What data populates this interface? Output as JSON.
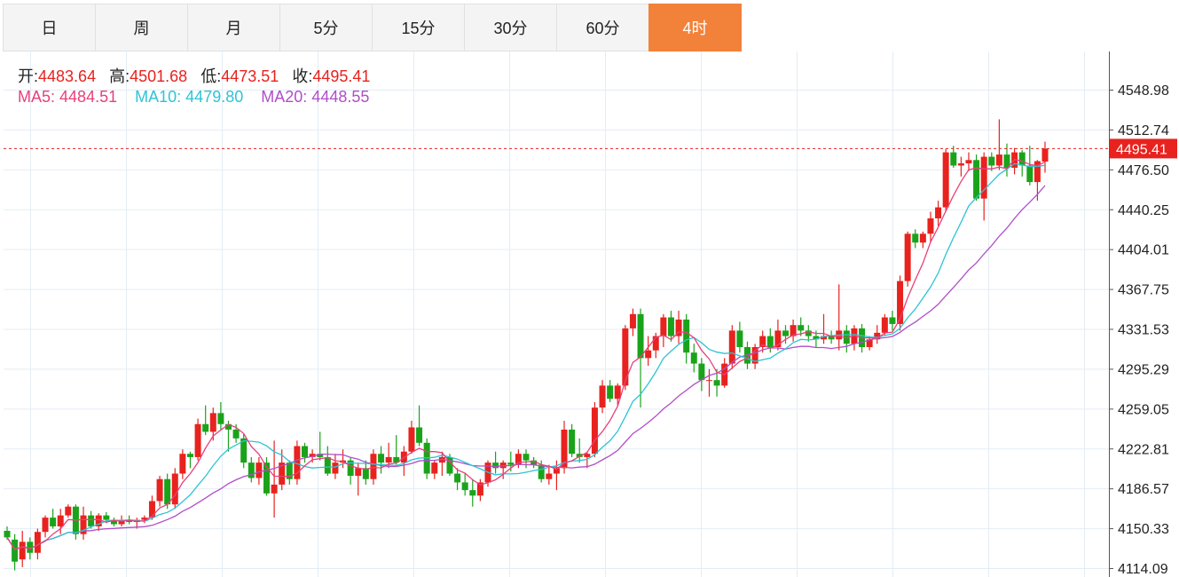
{
  "tabs": [
    "日",
    "周",
    "月",
    "5分",
    "15分",
    "30分",
    "60分",
    "4时"
  ],
  "active_tab": 7,
  "ohlc_info": {
    "open_label": "开:",
    "open": "4483.64",
    "high_label": "高:",
    "high": "4501.68",
    "low_label": "低:",
    "low": "4473.51",
    "close_label": "收:",
    "close": "4495.41"
  },
  "ma_info": {
    "ma5_label": "MA5:",
    "ma5": "4484.51",
    "ma10_label": "MA10:",
    "ma10": "4479.80",
    "ma20_label": "MA20:",
    "ma20": "4448.55"
  },
  "colors": {
    "up": "#e8221e",
    "down": "#1aa31a",
    "ma5": "#e8407a",
    "ma10": "#2ec3d6",
    "ma20": "#b04ec8",
    "accent": "#f2823a",
    "grid": "#e4edf5"
  },
  "chart_data": {
    "type": "candlestick",
    "y_ticks": [
      "4548.98",
      "4512.74",
      "4476.50",
      "4440.25",
      "4404.01",
      "4367.75",
      "4331.53",
      "4295.29",
      "4259.05",
      "4222.81",
      "4186.57",
      "4150.33",
      "4114.09"
    ],
    "ylim": [
      4114.09,
      4548.98
    ],
    "last_price_label": "4495.41",
    "last_price": 4495.41,
    "candles": [
      [
        4148,
        4152,
        4140,
        4142
      ],
      [
        4140,
        4145,
        4112,
        4120
      ],
      [
        4122,
        4148,
        4115,
        4138
      ],
      [
        4138,
        4142,
        4122,
        4128
      ],
      [
        4128,
        4150,
        4122,
        4147
      ],
      [
        4147,
        4162,
        4142,
        4160
      ],
      [
        4160,
        4168,
        4150,
        4152
      ],
      [
        4152,
        4168,
        4145,
        4162
      ],
      [
        4162,
        4172,
        4160,
        4170
      ],
      [
        4170,
        4172,
        4140,
        4145
      ],
      [
        4145,
        4170,
        4140,
        4162
      ],
      [
        4162,
        4166,
        4150,
        4152
      ],
      [
        4152,
        4164,
        4148,
        4162
      ],
      [
        4162,
        4165,
        4155,
        4158
      ],
      [
        4158,
        4160,
        4152,
        4154
      ],
      [
        4154,
        4162,
        4152,
        4158
      ],
      [
        4158,
        4162,
        4154,
        4156
      ],
      [
        4156,
        4160,
        4150,
        4158
      ],
      [
        4158,
        4162,
        4155,
        4160
      ],
      [
        4160,
        4180,
        4158,
        4175
      ],
      [
        4175,
        4198,
        4170,
        4195
      ],
      [
        4195,
        4200,
        4168,
        4172
      ],
      [
        4172,
        4205,
        4168,
        4200
      ],
      [
        4200,
        4222,
        4195,
        4218
      ],
      [
        4218,
        4220,
        4205,
        4215
      ],
      [
        4215,
        4250,
        4212,
        4245
      ],
      [
        4245,
        4262,
        4235,
        4238
      ],
      [
        4238,
        4260,
        4230,
        4255
      ],
      [
        4255,
        4265,
        4240,
        4245
      ],
      [
        4245,
        4248,
        4220,
        4240
      ],
      [
        4240,
        4245,
        4228,
        4232
      ],
      [
        4232,
        4236,
        4205,
        4210
      ],
      [
        4210,
        4215,
        4192,
        4196
      ],
      [
        4196,
        4215,
        4190,
        4210
      ],
      [
        4210,
        4215,
        4180,
        4182
      ],
      [
        4182,
        4230,
        4160,
        4190
      ],
      [
        4190,
        4222,
        4185,
        4210
      ],
      [
        4210,
        4212,
        4190,
        4195
      ],
      [
        4195,
        4230,
        4190,
        4225
      ],
      [
        4225,
        4228,
        4210,
        4215
      ],
      [
        4215,
        4222,
        4210,
        4218
      ],
      [
        4218,
        4238,
        4212,
        4215
      ],
      [
        4215,
        4225,
        4198,
        4200
      ],
      [
        4200,
        4218,
        4195,
        4210
      ],
      [
        4210,
        4222,
        4205,
        4212
      ],
      [
        4212,
        4215,
        4190,
        4198
      ],
      [
        4198,
        4210,
        4180,
        4205
      ],
      [
        4205,
        4212,
        4190,
        4195
      ],
      [
        4195,
        4222,
        4190,
        4218
      ],
      [
        4218,
        4225,
        4200,
        4210
      ],
      [
        4210,
        4228,
        4205,
        4215
      ],
      [
        4215,
        4235,
        4208,
        4210
      ],
      [
        4210,
        4225,
        4198,
        4220
      ],
      [
        4220,
        4248,
        4218,
        4242
      ],
      [
        4242,
        4262,
        4225,
        4228
      ],
      [
        4228,
        4232,
        4195,
        4200
      ],
      [
        4200,
        4212,
        4195,
        4210
      ],
      [
        4210,
        4220,
        4198,
        4215
      ],
      [
        4215,
        4218,
        4198,
        4200
      ],
      [
        4200,
        4205,
        4185,
        4192
      ],
      [
        4192,
        4200,
        4180,
        4185
      ],
      [
        4185,
        4195,
        4170,
        4180
      ],
      [
        4180,
        4195,
        4175,
        4192
      ],
      [
        4192,
        4212,
        4188,
        4210
      ],
      [
        4210,
        4220,
        4200,
        4205
      ],
      [
        4205,
        4212,
        4195,
        4210
      ],
      [
        4210,
        4220,
        4202,
        4208
      ],
      [
        4208,
        4222,
        4205,
        4218
      ],
      [
        4218,
        4222,
        4205,
        4212
      ],
      [
        4212,
        4215,
        4205,
        4208
      ],
      [
        4208,
        4212,
        4192,
        4195
      ],
      [
        4195,
        4208,
        4190,
        4200
      ],
      [
        4200,
        4212,
        4185,
        4205
      ],
      [
        4205,
        4248,
        4200,
        4240
      ],
      [
        4240,
        4245,
        4215,
        4218
      ],
      [
        4218,
        4232,
        4210,
        4215
      ],
      [
        4215,
        4220,
        4205,
        4218
      ],
      [
        4218,
        4265,
        4215,
        4260
      ],
      [
        4260,
        4285,
        4255,
        4280
      ],
      [
        4280,
        4285,
        4265,
        4268
      ],
      [
        4268,
        4282,
        4262,
        4280
      ],
      [
        4280,
        4335,
        4276,
        4332
      ],
      [
        4332,
        4350,
        4325,
        4345
      ],
      [
        4345,
        4350,
        4260,
        4305
      ],
      [
        4305,
        4325,
        4298,
        4312
      ],
      [
        4312,
        4328,
        4305,
        4325
      ],
      [
        4325,
        4345,
        4315,
        4342
      ],
      [
        4342,
        4348,
        4320,
        4325
      ],
      [
        4325,
        4348,
        4318,
        4340
      ],
      [
        4340,
        4345,
        4300,
        4310
      ],
      [
        4310,
        4318,
        4292,
        4300
      ],
      [
        4300,
        4305,
        4275,
        4285
      ],
      [
        4285,
        4295,
        4270,
        4285
      ],
      [
        4285,
        4295,
        4270,
        4280
      ],
      [
        4280,
        4305,
        4278,
        4300
      ],
      [
        4300,
        4335,
        4295,
        4330
      ],
      [
        4330,
        4338,
        4310,
        4315
      ],
      [
        4315,
        4320,
        4295,
        4300
      ],
      [
        4300,
        4318,
        4295,
        4315
      ],
      [
        4315,
        4330,
        4310,
        4325
      ],
      [
        4325,
        4332,
        4310,
        4315
      ],
      [
        4315,
        4340,
        4312,
        4330
      ],
      [
        4330,
        4335,
        4318,
        4325
      ],
      [
        4325,
        4340,
        4320,
        4335
      ],
      [
        4335,
        4342,
        4325,
        4330
      ],
      [
        4330,
        4335,
        4320,
        4325
      ],
      [
        4325,
        4330,
        4315,
        4322
      ],
      [
        4322,
        4345,
        4318,
        4325
      ],
      [
        4325,
        4330,
        4318,
        4322
      ],
      [
        4322,
        4372,
        4312,
        4330
      ],
      [
        4330,
        4335,
        4310,
        4318
      ],
      [
        4318,
        4335,
        4312,
        4332
      ],
      [
        4332,
        4336,
        4310,
        4315
      ],
      [
        4315,
        4325,
        4312,
        4322
      ],
      [
        4322,
        4335,
        4318,
        4328
      ],
      [
        4328,
        4345,
        4325,
        4342
      ],
      [
        4342,
        4348,
        4330,
        4336
      ],
      [
        4336,
        4380,
        4330,
        4375
      ],
      [
        4375,
        4420,
        4370,
        4418
      ],
      [
        4418,
        4422,
        4405,
        4410
      ],
      [
        4410,
        4420,
        4405,
        4418
      ],
      [
        4418,
        4438,
        4410,
        4432
      ],
      [
        4432,
        4448,
        4425,
        4442
      ],
      [
        4442,
        4495,
        4438,
        4492
      ],
      [
        4492,
        4498,
        4478,
        4480
      ],
      [
        4480,
        4488,
        4470,
        4482
      ],
      [
        4482,
        4492,
        4475,
        4485
      ],
      [
        4485,
        4490,
        4448,
        4450
      ],
      [
        4450,
        4492,
        4430,
        4488
      ],
      [
        4488,
        4492,
        4475,
        4480
      ],
      [
        4480,
        4522,
        4476,
        4490
      ],
      [
        4490,
        4500,
        4470,
        4478
      ],
      [
        4478,
        4496,
        4472,
        4492
      ],
      [
        4492,
        4494,
        4470,
        4480
      ],
      [
        4480,
        4498,
        4462,
        4465
      ],
      [
        4465,
        4485,
        4448,
        4484
      ],
      [
        4483.64,
        4501.68,
        4473.51,
        4495.41
      ]
    ]
  }
}
